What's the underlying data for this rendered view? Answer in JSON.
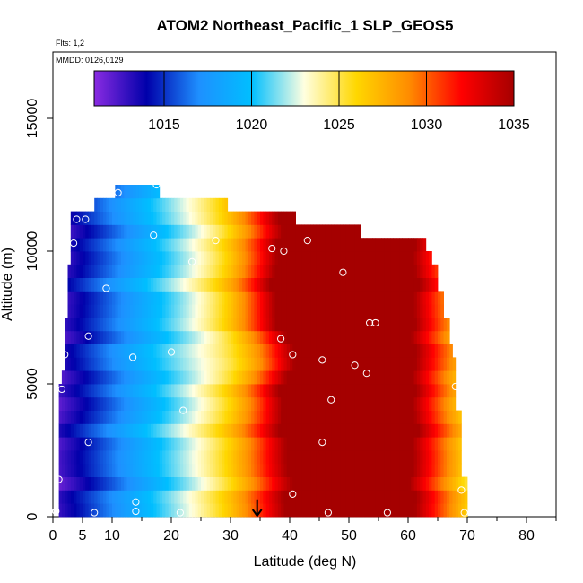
{
  "chart_data": {
    "type": "heatmap",
    "title": "ATOM2 Northeast_Pacific_1 SLP_GEOS5",
    "annotations": [
      "Flts: 1,2",
      "MMDD: 0126,0129"
    ],
    "xlabel": "Latitude (deg N)",
    "ylabel": "Altitude (m)",
    "xlim": [
      0,
      85
    ],
    "ylim": [
      0,
      17500
    ],
    "x_ticks": [
      0,
      5,
      10,
      20,
      30,
      40,
      50,
      60,
      70,
      80
    ],
    "y_ticks": [
      0,
      5000,
      10000,
      15000
    ],
    "colorbar": {
      "range": [
        1011,
        1035
      ],
      "ticks": [
        1015,
        1020,
        1025,
        1030,
        1035
      ],
      "colors": [
        "#8a2be2",
        "#0000aa",
        "#1e90ff",
        "#00bfff",
        "#ffffe0",
        "#ffd700",
        "#ff8c00",
        "#ff0000",
        "#a50000"
      ]
    },
    "grid": false,
    "highlight_latitude": 34.5,
    "lat_ranges": [
      {
        "alt": 250,
        "min": 1,
        "max": 70
      },
      {
        "alt": 750,
        "min": 1,
        "max": 70
      },
      {
        "alt": 1250,
        "min": 1,
        "max": 70
      },
      {
        "alt": 1750,
        "min": 1,
        "max": 69
      },
      {
        "alt": 2250,
        "min": 1,
        "max": 69
      },
      {
        "alt": 2750,
        "min": 1,
        "max": 69
      },
      {
        "alt": 3250,
        "min": 1,
        "max": 69
      },
      {
        "alt": 3750,
        "min": 1,
        "max": 69
      },
      {
        "alt": 4250,
        "min": 1,
        "max": 68
      },
      {
        "alt": 4750,
        "min": 1,
        "max": 68
      },
      {
        "alt": 5250,
        "min": 1.5,
        "max": 68
      },
      {
        "alt": 5750,
        "min": 2,
        "max": 68
      },
      {
        "alt": 6250,
        "min": 2,
        "max": 67.5
      },
      {
        "alt": 6750,
        "min": 2,
        "max": 67
      },
      {
        "alt": 7250,
        "min": 2,
        "max": 67
      },
      {
        "alt": 7750,
        "min": 2.5,
        "max": 66
      },
      {
        "alt": 8250,
        "min": 2.5,
        "max": 66
      },
      {
        "alt": 8750,
        "min": 2.5,
        "max": 65
      },
      {
        "alt": 9250,
        "min": 2.5,
        "max": 65
      },
      {
        "alt": 9750,
        "min": 3,
        "max": 64
      },
      {
        "alt": 10250,
        "min": 3,
        "max": 63
      },
      {
        "alt": 10750,
        "min": 3,
        "max": 52
      },
      {
        "alt": 11250,
        "min": 3,
        "max": 41
      },
      {
        "alt": 11750,
        "min": 7,
        "max": 29.5
      },
      {
        "alt": 12250,
        "min": 10.5,
        "max": 18
      }
    ],
    "observations": [
      {
        "lat": 0.5,
        "alt": 200
      },
      {
        "lat": 1,
        "alt": 1400
      },
      {
        "lat": 1.5,
        "alt": 4800
      },
      {
        "lat": 2,
        "alt": 6100
      },
      {
        "lat": 3.5,
        "alt": 10300
      },
      {
        "lat": 4,
        "alt": 11200
      },
      {
        "lat": 5.5,
        "alt": 11200
      },
      {
        "lat": 6,
        "alt": 6800
      },
      {
        "lat": 6,
        "alt": 2800
      },
      {
        "lat": 7,
        "alt": 150
      },
      {
        "lat": 9,
        "alt": 8600
      },
      {
        "lat": 11,
        "alt": 12200
      },
      {
        "lat": 13.5,
        "alt": 6000
      },
      {
        "lat": 14,
        "alt": 550
      },
      {
        "lat": 14,
        "alt": 200
      },
      {
        "lat": 17,
        "alt": 10600
      },
      {
        "lat": 17.5,
        "alt": 12500
      },
      {
        "lat": 20,
        "alt": 6200
      },
      {
        "lat": 21.5,
        "alt": 150
      },
      {
        "lat": 22,
        "alt": 4000
      },
      {
        "lat": 23.5,
        "alt": 9600
      },
      {
        "lat": 27.5,
        "alt": 10400
      },
      {
        "lat": 37,
        "alt": 10100
      },
      {
        "lat": 38.5,
        "alt": 6700
      },
      {
        "lat": 39,
        "alt": 10000
      },
      {
        "lat": 40.5,
        "alt": 850
      },
      {
        "lat": 40.5,
        "alt": 6100
      },
      {
        "lat": 43,
        "alt": 10400
      },
      {
        "lat": 45.5,
        "alt": 5900
      },
      {
        "lat": 45.5,
        "alt": 2800
      },
      {
        "lat": 46.5,
        "alt": 150
      },
      {
        "lat": 47,
        "alt": 4400
      },
      {
        "lat": 49,
        "alt": 9200
      },
      {
        "lat": 51,
        "alt": 5700
      },
      {
        "lat": 53,
        "alt": 5400
      },
      {
        "lat": 53.5,
        "alt": 7300
      },
      {
        "lat": 54.5,
        "alt": 7300
      },
      {
        "lat": 56.5,
        "alt": 150
      },
      {
        "lat": 68,
        "alt": 4900
      },
      {
        "lat": 69,
        "alt": 1000
      },
      {
        "lat": 69.5,
        "alt": 150
      }
    ]
  }
}
